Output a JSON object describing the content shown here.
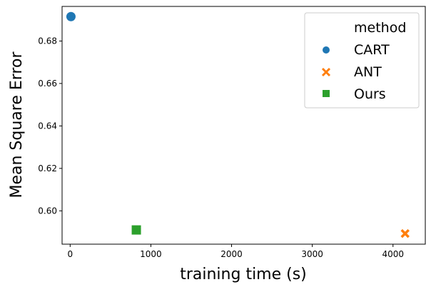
{
  "chart_data": {
    "type": "scatter",
    "title": "",
    "xlabel": "training time (s)",
    "ylabel": "Mean Square Error",
    "xlim": [
      -100,
      4400
    ],
    "ylim": [
      0.5843,
      0.6963
    ],
    "x_ticks": [
      0,
      1000,
      2000,
      3000,
      4000
    ],
    "x_tick_labels": [
      "0",
      "1000",
      "2000",
      "3000",
      "4000"
    ],
    "y_ticks": [
      0.6,
      0.62,
      0.64,
      0.66,
      0.68
    ],
    "y_tick_labels": [
      "0.60",
      "0.62",
      "0.64",
      "0.66",
      "0.68"
    ],
    "grid": false,
    "legend": {
      "title": "method",
      "placement": "top-right"
    },
    "series": [
      {
        "name": "CART",
        "marker": "circle",
        "color": "#1f77b4",
        "points": [
          {
            "x": 10,
            "y": 0.6915
          }
        ]
      },
      {
        "name": "ANT",
        "marker": "x",
        "color": "#ff7f0e",
        "points": [
          {
            "x": 4150,
            "y": 0.5893
          }
        ]
      },
      {
        "name": "Ours",
        "marker": "square",
        "color": "#2ca02c",
        "points": [
          {
            "x": 820,
            "y": 0.591
          }
        ]
      }
    ]
  }
}
